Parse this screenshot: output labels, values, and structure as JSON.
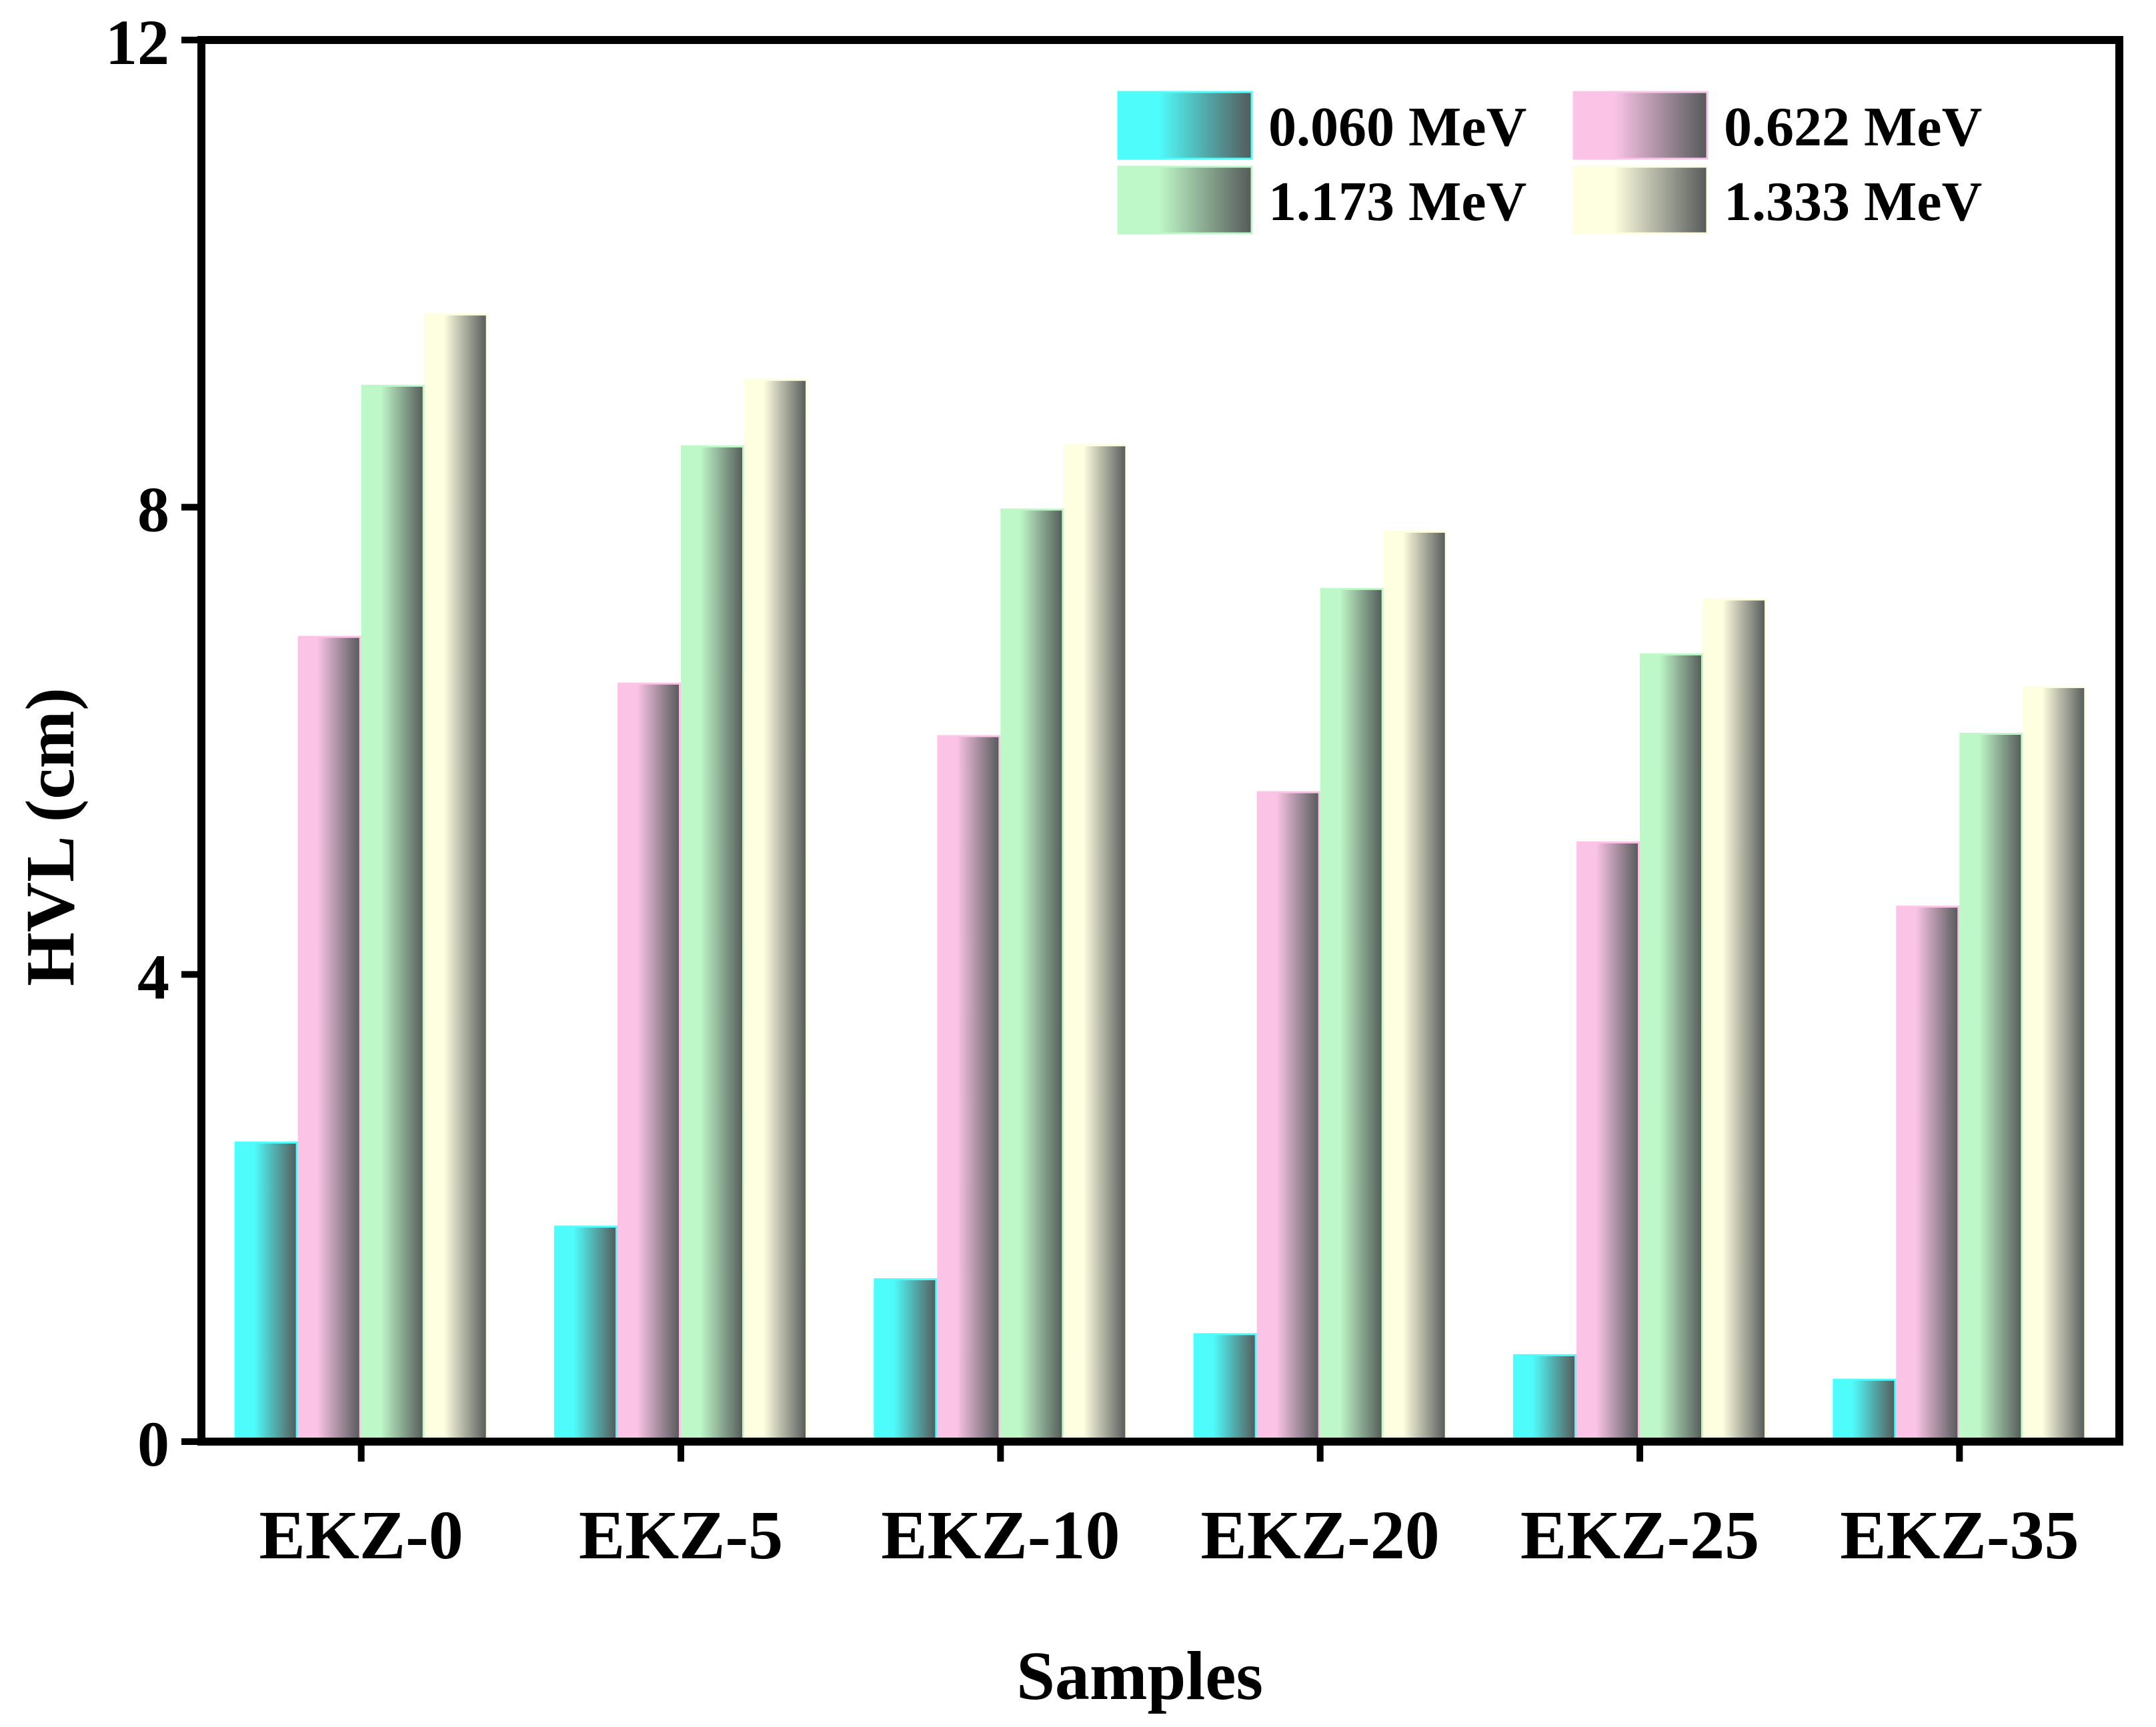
{
  "chart_data": {
    "type": "bar",
    "title": "",
    "xlabel": "Samples",
    "ylabel": "HVL (cm)",
    "ylim": [
      0,
      12
    ],
    "yticks": [
      0,
      4,
      8,
      12
    ],
    "grid": false,
    "legend_position": "top-right",
    "categories": [
      "EKZ-0",
      "EKZ-5",
      "EKZ-10",
      "EKZ-20",
      "EKZ-25",
      "EKZ-35"
    ],
    "series": [
      {
        "name": "0.060 MeV",
        "color": "#4ffcfc",
        "values": [
          2.56,
          1.84,
          1.39,
          0.92,
          0.74,
          0.53
        ]
      },
      {
        "name": "0.622 MeV",
        "color": "#fbc4e6",
        "values": [
          6.89,
          6.49,
          6.04,
          5.56,
          5.13,
          4.58
        ]
      },
      {
        "name": "1.173 MeV",
        "color": "#bff8c8",
        "values": [
          9.04,
          8.52,
          7.98,
          7.3,
          6.74,
          6.06
        ]
      },
      {
        "name": "1.333 MeV",
        "color": "#fefee0",
        "values": [
          9.65,
          9.09,
          8.53,
          7.79,
          7.21,
          6.46
        ]
      }
    ]
  }
}
